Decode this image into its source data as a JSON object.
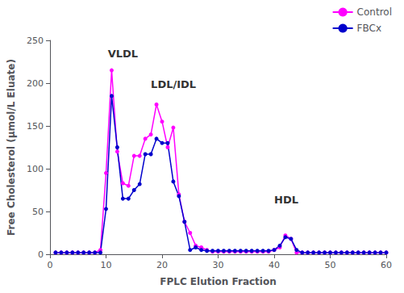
{
  "chart_data": {
    "type": "line",
    "xlabel": "FPLC Elution Fraction",
    "ylabel": "Free Cholesterol (µmol/L Eluate)",
    "x": [
      1,
      2,
      3,
      4,
      5,
      6,
      7,
      8,
      9,
      10,
      11,
      12,
      13,
      14,
      15,
      16,
      17,
      18,
      19,
      20,
      21,
      22,
      23,
      24,
      25,
      26,
      27,
      28,
      29,
      30,
      31,
      32,
      33,
      34,
      35,
      36,
      37,
      38,
      39,
      40,
      41,
      42,
      43,
      44,
      45,
      46,
      47,
      48,
      49,
      50,
      51,
      52,
      53,
      54,
      55,
      56,
      57,
      58,
      59,
      60
    ],
    "series": [
      {
        "name": "Control",
        "color": "#FF00FF",
        "marker": "circle",
        "values": [
          2,
          2,
          2,
          2,
          2,
          2,
          2,
          2,
          5,
          95,
          215,
          120,
          83,
          80,
          115,
          115,
          135,
          140,
          175,
          155,
          125,
          148,
          70,
          38,
          25,
          10,
          8,
          5,
          3,
          3,
          3,
          3,
          3,
          3,
          3,
          3,
          3,
          3,
          3,
          5,
          8,
          22,
          18,
          2,
          2,
          2,
          2,
          2,
          2,
          2,
          2,
          2,
          2,
          2,
          2,
          2,
          2,
          2,
          2,
          2
        ]
      },
      {
        "name": "FBCx",
        "color": "#0000CC",
        "marker": "circle",
        "values": [
          2,
          2,
          2,
          2,
          2,
          2,
          2,
          2,
          2,
          53,
          185,
          125,
          65,
          65,
          75,
          82,
          117,
          117,
          135,
          130,
          130,
          85,
          68,
          38,
          5,
          8,
          5,
          4,
          4,
          4,
          4,
          4,
          4,
          4,
          4,
          4,
          4,
          4,
          4,
          5,
          10,
          20,
          18,
          5,
          2,
          2,
          2,
          2,
          2,
          2,
          2,
          2,
          2,
          2,
          2,
          2,
          2,
          2,
          2,
          2
        ]
      }
    ],
    "xlim": [
      0,
      60
    ],
    "xticks": [
      0,
      10,
      20,
      30,
      40,
      50,
      60
    ],
    "ylim": [
      0,
      250
    ],
    "yticks": [
      0,
      50,
      100,
      150,
      200,
      250
    ],
    "annotations": [
      {
        "text": "VLDL",
        "x": 13,
        "y": 228
      },
      {
        "text": "LDL/IDL",
        "x": 18,
        "y": 192
      },
      {
        "text": "HDL",
        "x": 40,
        "y": 58
      }
    ],
    "legend": "upper right",
    "grid": false
  }
}
